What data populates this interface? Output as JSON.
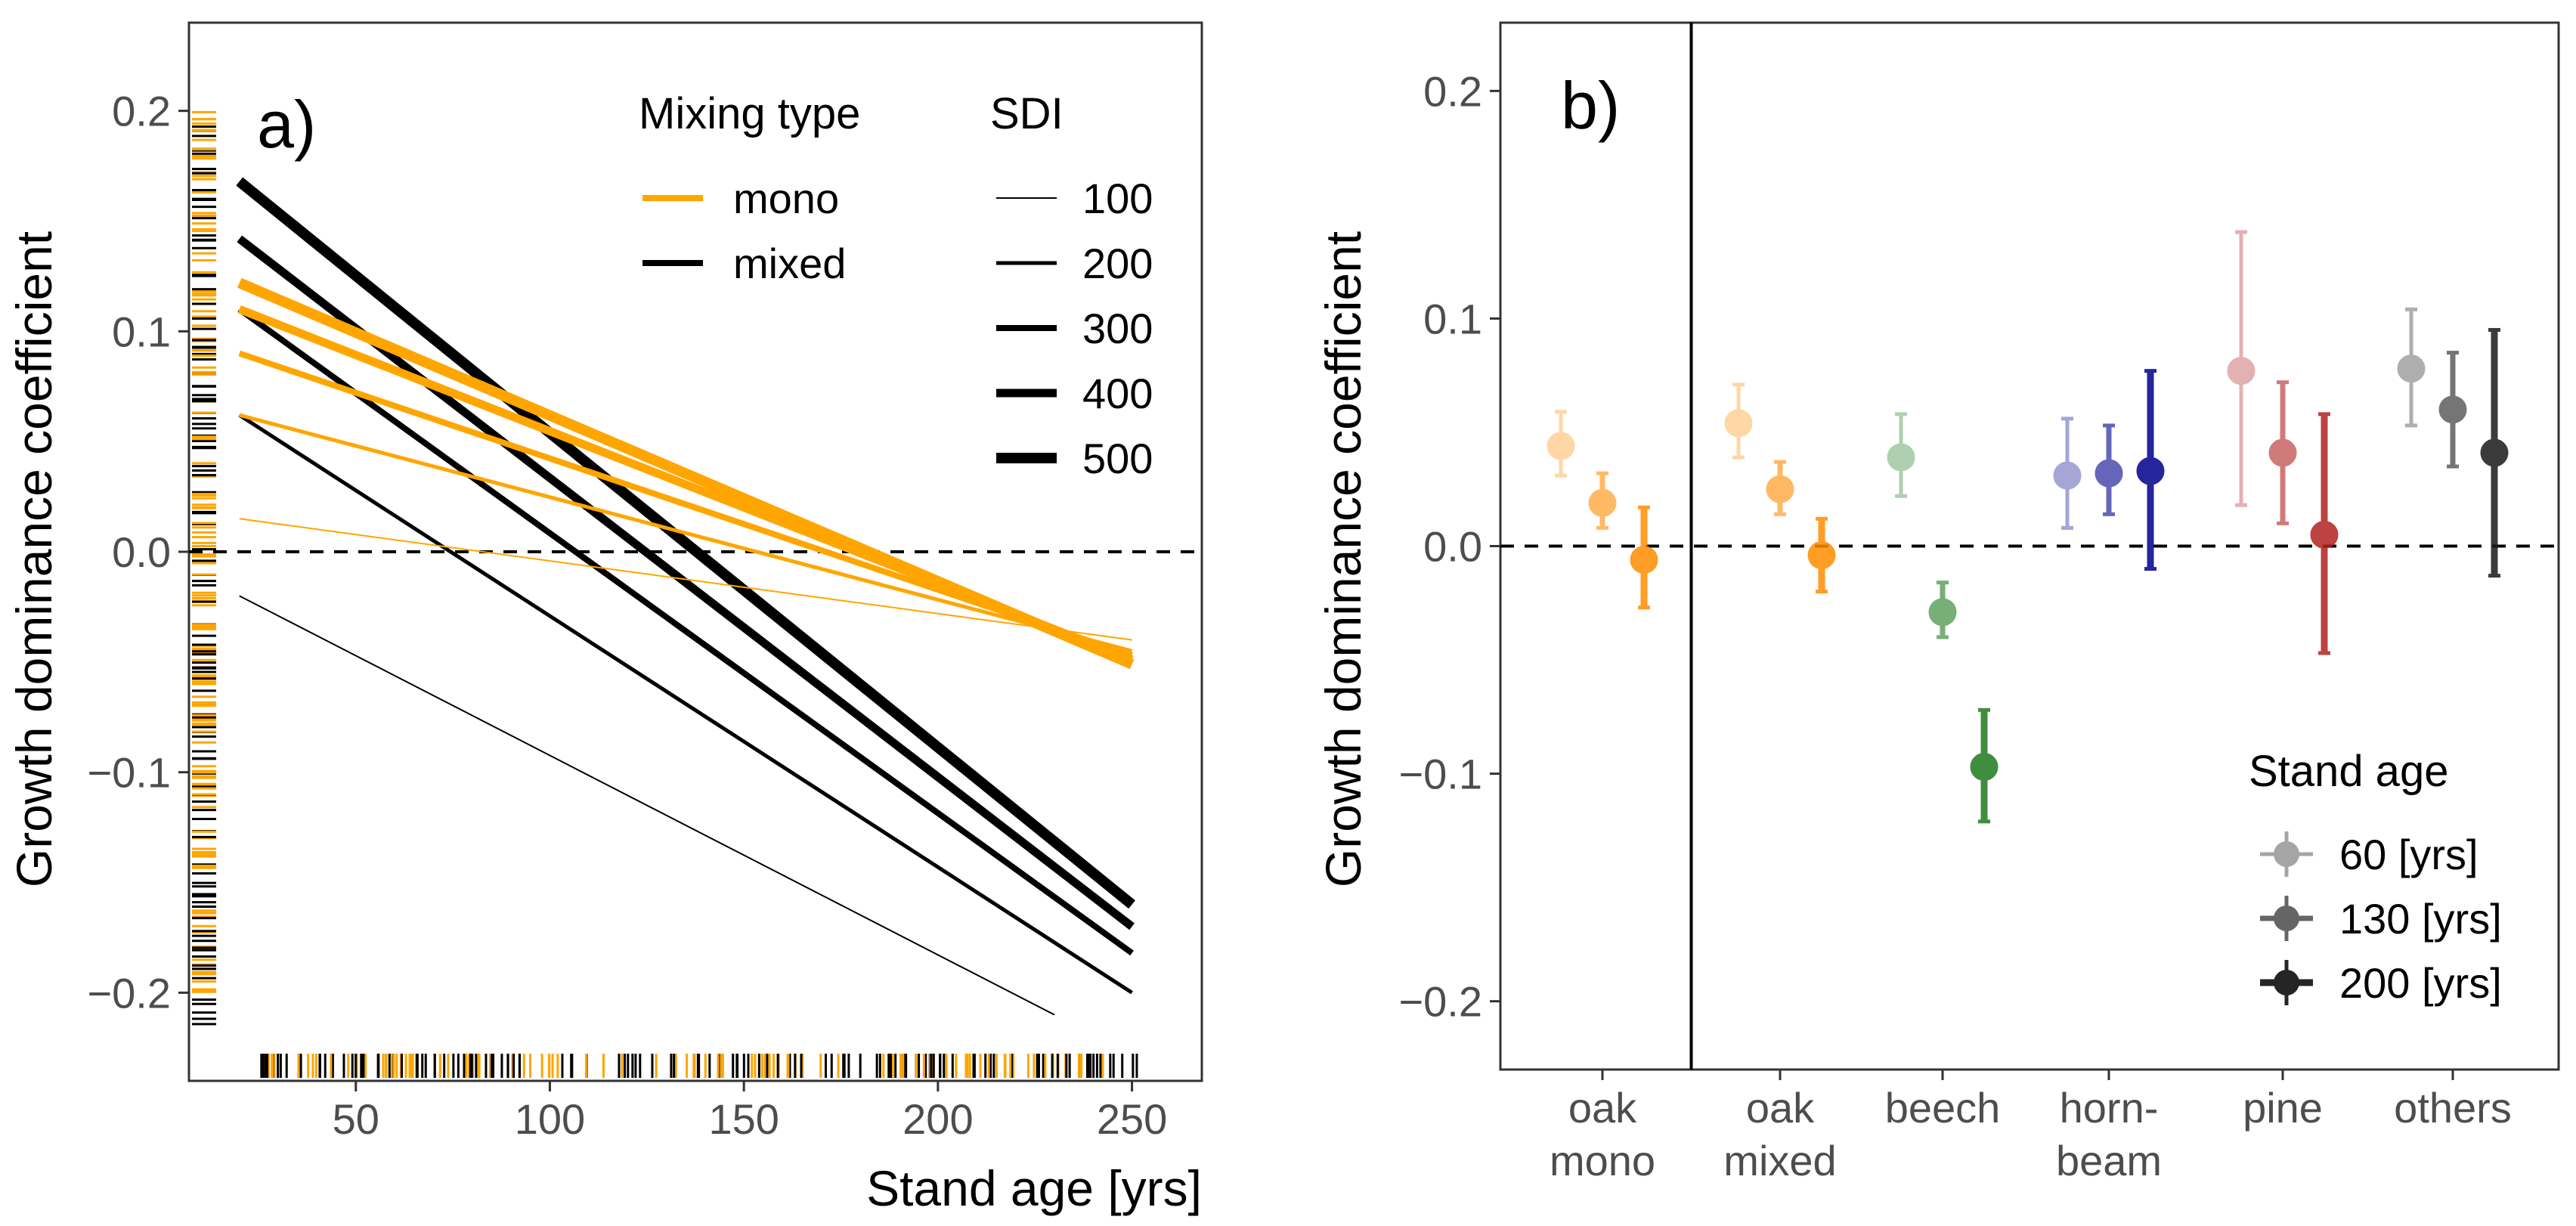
{
  "chart_data": [
    {
      "panel": "a)",
      "type": "line",
      "xlabel": "Stand age [yrs]",
      "ylabel": "Growth dominance coefficient",
      "xlim": [
        7,
        268
      ],
      "ylim": [
        -0.24,
        0.24
      ],
      "xticks": [
        50,
        100,
        150,
        200,
        250
      ],
      "yticks": [
        -0.2,
        -0.1,
        0.0,
        0.1,
        0.2
      ],
      "ytick_labels": [
        "−0.2",
        "−0.1",
        "0.0",
        "0.1",
        "0.2"
      ],
      "reference_line_y": 0,
      "legend": {
        "mixing_title": "Mixing type",
        "mixing": [
          {
            "label": "mono",
            "color": "#FFA500"
          },
          {
            "label": "mixed",
            "color": "#000000"
          }
        ],
        "sdi_title": "SDI",
        "sdi": [
          "100",
          "200",
          "300",
          "400",
          "500"
        ]
      },
      "series": [
        {
          "mixing": "mono",
          "sdi": 100,
          "x": [
            20,
            250
          ],
          "y": [
            0.015,
            -0.04
          ]
        },
        {
          "mixing": "mono",
          "sdi": 200,
          "x": [
            20,
            250
          ],
          "y": [
            0.062,
            -0.045
          ]
        },
        {
          "mixing": "mono",
          "sdi": 300,
          "x": [
            20,
            250
          ],
          "y": [
            0.09,
            -0.047
          ]
        },
        {
          "mixing": "mono",
          "sdi": 400,
          "x": [
            20,
            250
          ],
          "y": [
            0.11,
            -0.049
          ]
        },
        {
          "mixing": "mono",
          "sdi": 500,
          "x": [
            20,
            250
          ],
          "y": [
            0.122,
            -0.051
          ]
        },
        {
          "mixing": "mixed",
          "sdi": 100,
          "x": [
            20,
            230
          ],
          "y": [
            -0.02,
            -0.21
          ]
        },
        {
          "mixing": "mixed",
          "sdi": 200,
          "x": [
            20,
            250
          ],
          "y": [
            0.062,
            -0.2
          ]
        },
        {
          "mixing": "mixed",
          "sdi": 300,
          "x": [
            20,
            250
          ],
          "y": [
            0.11,
            -0.182
          ]
        },
        {
          "mixing": "mixed",
          "sdi": 400,
          "x": [
            20,
            250
          ],
          "y": [
            0.142,
            -0.17
          ]
        },
        {
          "mixing": "mixed",
          "sdi": 500,
          "x": [
            20,
            250
          ],
          "y": [
            0.168,
            -0.16
          ]
        }
      ],
      "rug": {
        "y_mono_range": [
          -0.2,
          0.2
        ],
        "y_mixed_range": [
          -0.215,
          0.195
        ],
        "x_mono_range": [
          25,
          245
        ],
        "x_mixed_range": [
          25,
          255
        ]
      }
    },
    {
      "panel": "b)",
      "type": "scatter",
      "ylabel": "Growth dominance coefficient",
      "ylim": [
        -0.23,
        0.23
      ],
      "yticks": [
        -0.2,
        -0.1,
        0.0,
        0.1,
        0.2
      ],
      "ytick_labels": [
        "−0.2",
        "−0.1",
        "0.0",
        "0.1",
        "0.2"
      ],
      "reference_line_y": 0,
      "categories": [
        {
          "label": [
            "oak",
            "mono"
          ],
          "color": "#FF8C00"
        },
        {
          "label": [
            "oak",
            "mixed"
          ],
          "color": "#FF8C00"
        },
        {
          "label": [
            "beech"
          ],
          "color": "#1E7B1E"
        },
        {
          "label": [
            "horn-",
            "beam"
          ],
          "color": "#00008B"
        },
        {
          "label": [
            "pine"
          ],
          "color": "#B22222"
        },
        {
          "label": [
            "others"
          ],
          "color": "#1A1A1A"
        }
      ],
      "separator_after_category": 0,
      "legend": {
        "title": "Stand age",
        "items": [
          {
            "label": "60 [yrs]",
            "opacity": 0.35
          },
          {
            "label": "130 [yrs]",
            "opacity": 0.6
          },
          {
            "label": "200 [yrs]",
            "opacity": 0.85
          }
        ]
      },
      "series": [
        {
          "name": "60 [yrs]",
          "values": [
            0.044,
            0.054,
            0.039,
            0.031,
            0.077,
            0.078
          ],
          "lower": [
            0.031,
            0.039,
            0.022,
            0.008,
            0.018,
            0.053
          ],
          "upper": [
            0.059,
            0.071,
            0.058,
            0.056,
            0.138,
            0.104
          ]
        },
        {
          "name": "130 [yrs]",
          "values": [
            0.019,
            0.025,
            -0.029,
            0.032,
            0.041,
            0.06
          ],
          "lower": [
            0.008,
            0.014,
            -0.04,
            0.014,
            0.01,
            0.035
          ],
          "upper": [
            0.032,
            0.037,
            -0.016,
            0.053,
            0.072,
            0.085
          ]
        },
        {
          "name": "200 [yrs]",
          "values": [
            -0.006,
            -0.004,
            -0.097,
            0.033,
            0.005,
            0.041
          ],
          "lower": [
            -0.027,
            -0.02,
            -0.121,
            -0.01,
            -0.047,
            -0.013
          ],
          "upper": [
            0.017,
            0.012,
            -0.072,
            0.077,
            0.058,
            0.095
          ]
        }
      ]
    }
  ]
}
